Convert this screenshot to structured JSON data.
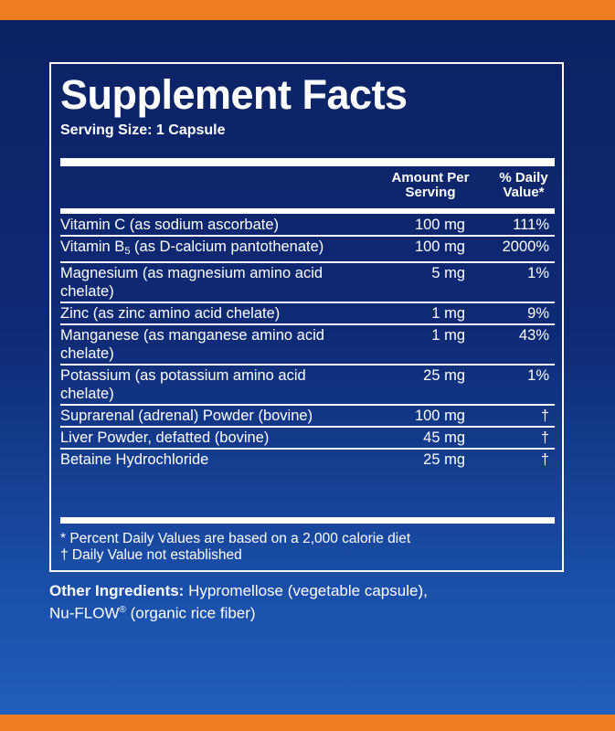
{
  "colors": {
    "background_top": "#0b2163",
    "background_bottom": "#2160c0",
    "accent_stripe": "#ef7d22",
    "text": "#ffffff"
  },
  "facts": {
    "title": "Supplement Facts",
    "serving_size": "Serving Size: 1 Capsule",
    "header_amount": "Amount Per Serving",
    "header_dv": "% Daily Value*",
    "rows": [
      {
        "name": "Vitamin C (as sodium ascorbate)",
        "amount": "100 mg",
        "dv": "111%"
      },
      {
        "name_prefix": "Vitamin B",
        "name_subscript": "5",
        "name_suffix": " (as D-calcium pantothenate)",
        "amount": "100 mg",
        "dv": "2000%"
      },
      {
        "name": "Magnesium (as magnesium amino acid chelate)",
        "amount": "5 mg",
        "dv": "1%"
      },
      {
        "name": "Zinc (as zinc amino acid chelate)",
        "amount": "1 mg",
        "dv": "9%"
      },
      {
        "name": "Manganese (as manganese amino acid chelate)",
        "amount": "1 mg",
        "dv": "43%"
      },
      {
        "name": "Potassium (as potassium amino acid chelate)",
        "amount": "25 mg",
        "dv": "1%"
      },
      {
        "name": "Suprarenal (adrenal) Powder (bovine)",
        "amount": "100 mg",
        "dv": "†"
      },
      {
        "name": "Liver Powder, defatted (bovine)",
        "amount": "45 mg",
        "dv": "†"
      },
      {
        "name": "Betaine Hydrochloride",
        "amount": "25 mg",
        "dv": "†"
      }
    ],
    "footnote_1": "* Percent Daily Values are based on a 2,000 calorie diet",
    "footnote_2": "† Daily Value not established"
  },
  "other_ingredients": {
    "label": "Other Ingredients:",
    "text_1": " Hypromellose (vegetable capsule),",
    "text_2": "Nu-FLOW",
    "registered": "®",
    "text_3": " (organic rice fiber)"
  }
}
